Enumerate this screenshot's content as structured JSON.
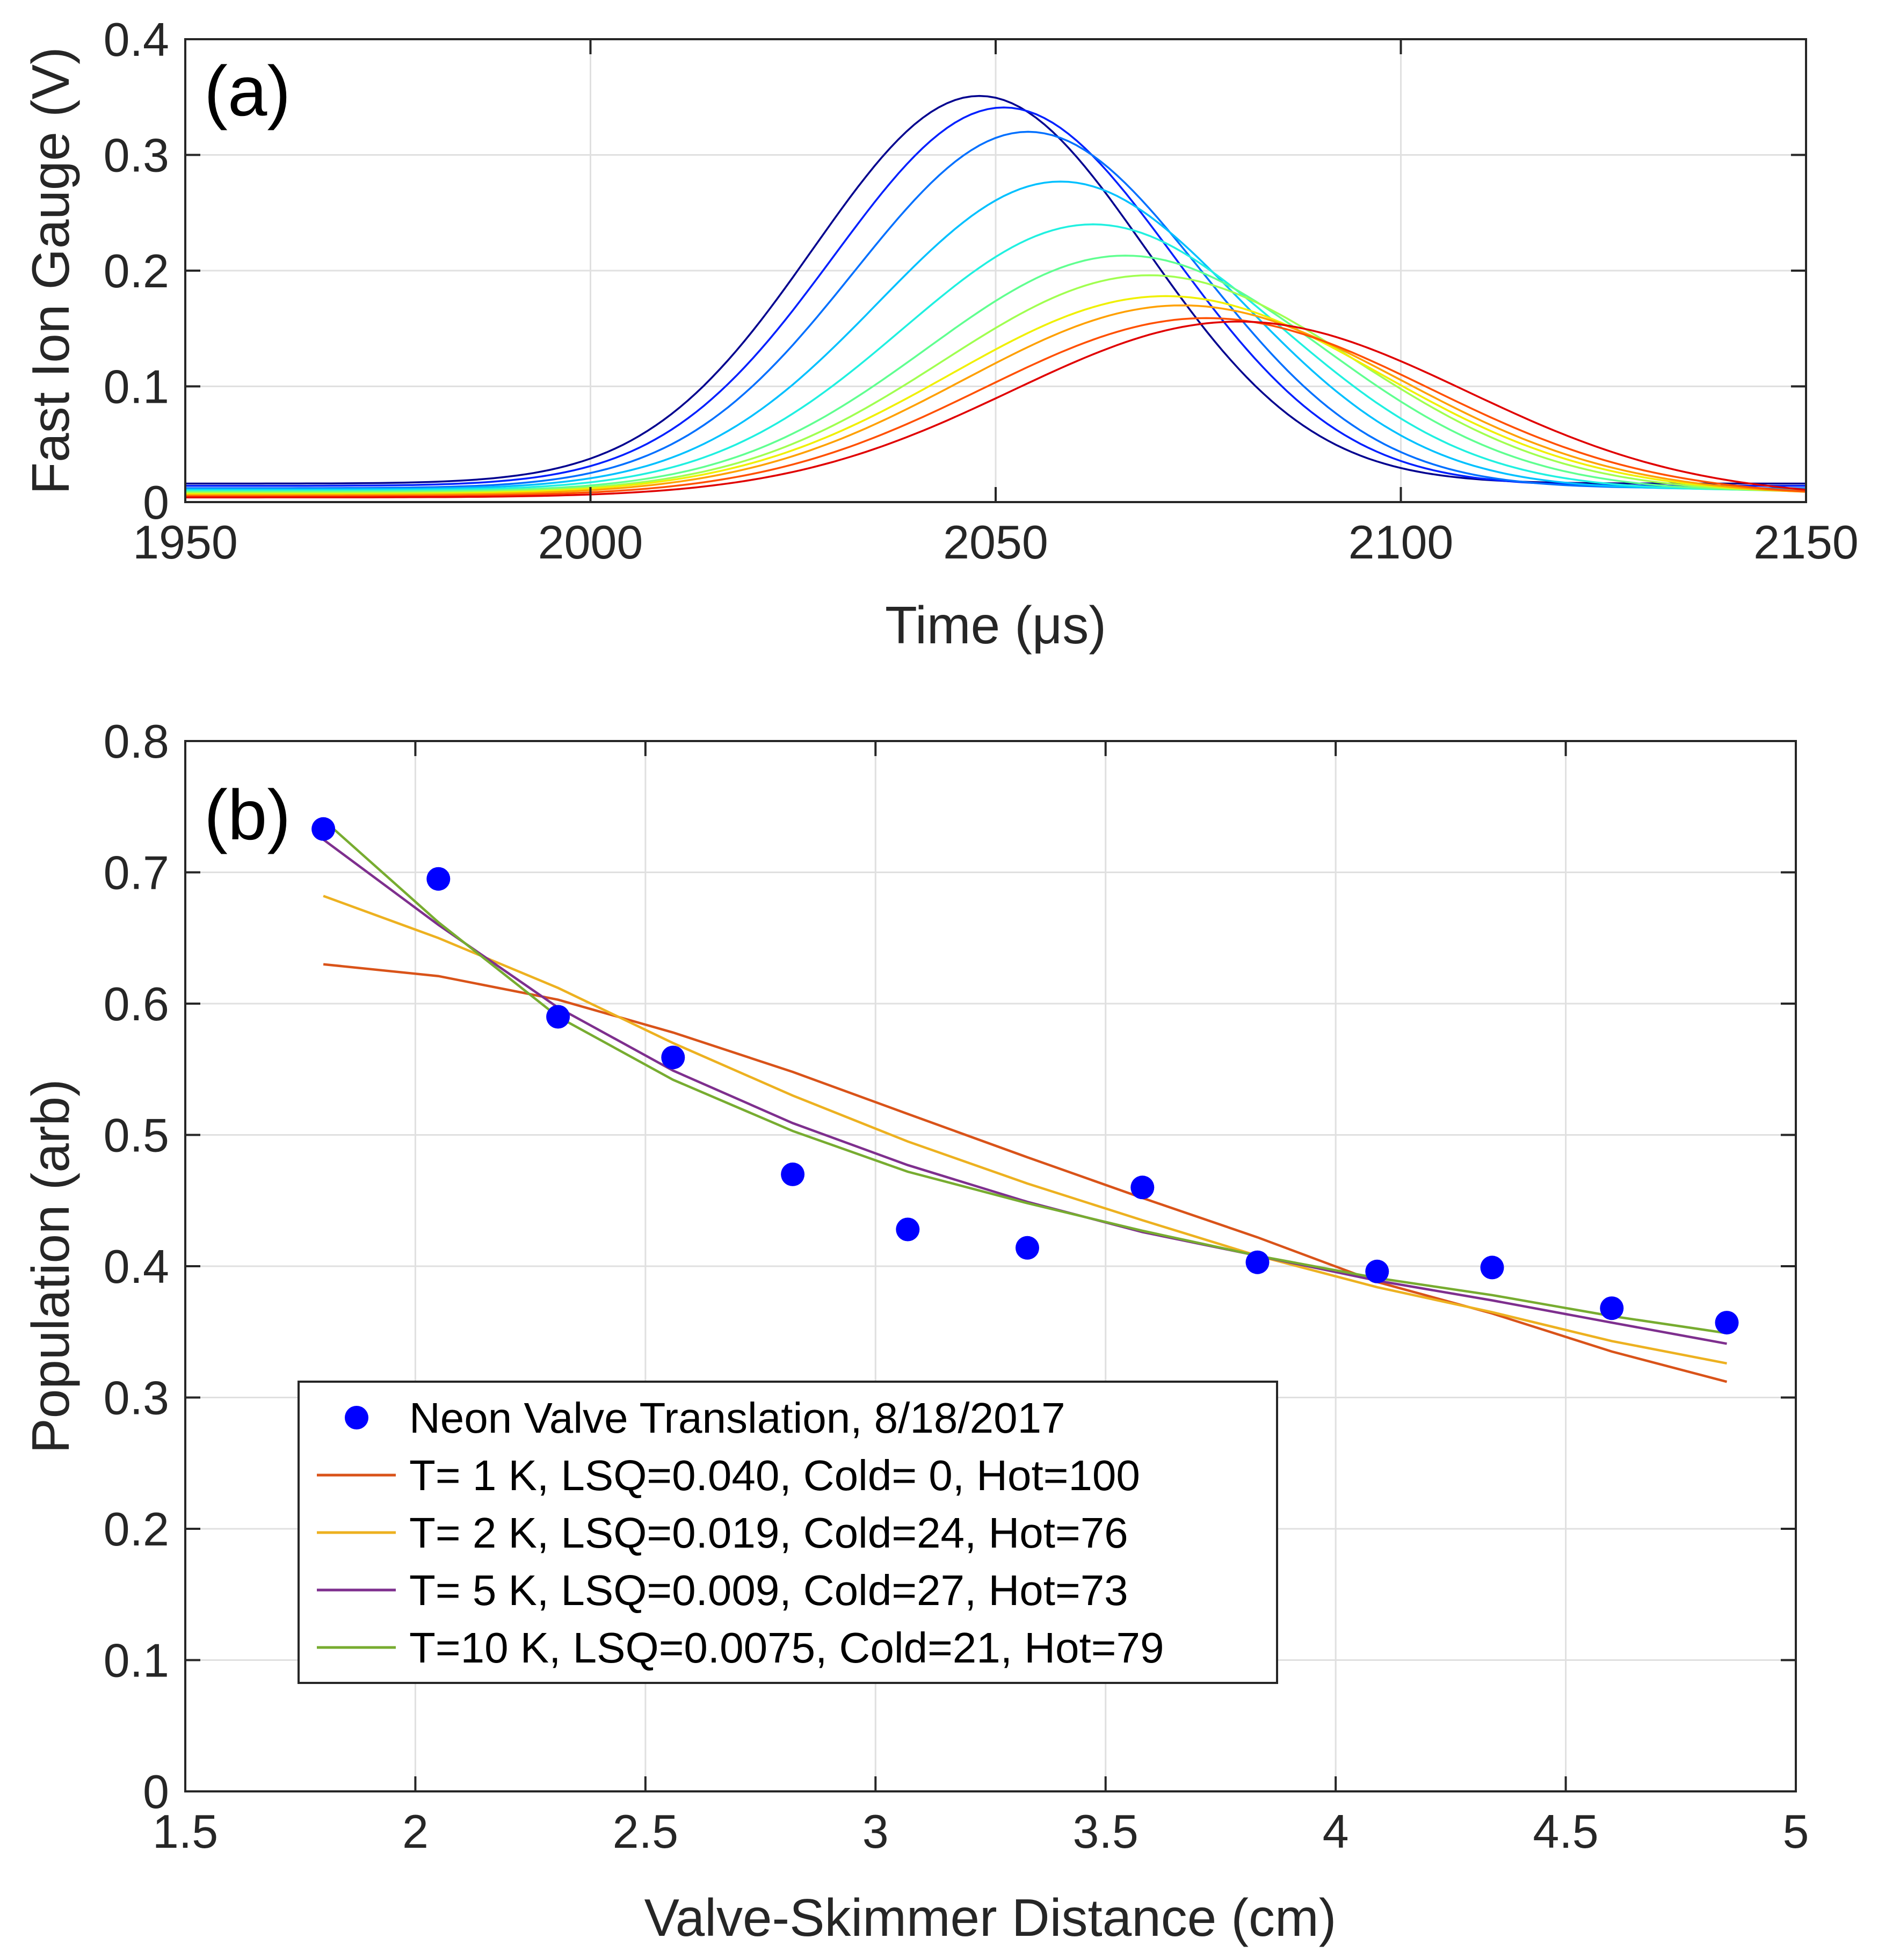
{
  "chart_data": [
    {
      "panel_label": "(a)",
      "type": "line",
      "xlabel": "Time (μs)",
      "ylabel": "Fast Ion Gauge (V)",
      "xlim": [
        1950,
        2150
      ],
      "ylim": [
        0,
        0.4
      ],
      "xticks": [
        1950,
        2000,
        2050,
        2100,
        2150
      ],
      "xtick_labels": [
        "1950",
        "2000",
        "2050",
        "2100",
        "2150"
      ],
      "yticks": [
        0,
        0.1,
        0.2,
        0.3,
        0.4
      ],
      "ytick_labels": [
        "0",
        "0.1",
        "0.2",
        "0.3",
        "0.4"
      ],
      "grid": true,
      "series": [
        {
          "color": "#00008f",
          "baseline": 0.016,
          "peak": 0.351,
          "center": 2048,
          "sigma": 20.5
        },
        {
          "color": "#0020ff",
          "baseline": 0.014,
          "peak": 0.341,
          "center": 2051,
          "sigma": 21.0
        },
        {
          "color": "#0070ff",
          "baseline": 0.012,
          "peak": 0.32,
          "center": 2054,
          "sigma": 21.5
        },
        {
          "color": "#00c0ff",
          "baseline": 0.011,
          "peak": 0.277,
          "center": 2058,
          "sigma": 22.5
        },
        {
          "color": "#20f0e0",
          "baseline": 0.01,
          "peak": 0.24,
          "center": 2062,
          "sigma": 23.5
        },
        {
          "color": "#60ff90",
          "baseline": 0.009,
          "peak": 0.213,
          "center": 2066,
          "sigma": 24.5
        },
        {
          "color": "#a0ff50",
          "baseline": 0.008,
          "peak": 0.196,
          "center": 2069,
          "sigma": 25.5
        },
        {
          "color": "#f0f000",
          "baseline": 0.007,
          "peak": 0.178,
          "center": 2071,
          "sigma": 26.5
        },
        {
          "color": "#ffa000",
          "baseline": 0.006,
          "peak": 0.17,
          "center": 2073,
          "sigma": 27.0
        },
        {
          "color": "#ff5000",
          "baseline": 0.005,
          "peak": 0.159,
          "center": 2076,
          "sigma": 27.5
        },
        {
          "color": "#e00000",
          "baseline": 0.004,
          "peak": 0.156,
          "center": 2080,
          "sigma": 28.0
        }
      ]
    },
    {
      "panel_label": "(b)",
      "type": "line",
      "xlabel": "Valve-Skimmer Distance (cm)",
      "ylabel": "Population (arb)",
      "xlim": [
        1.5,
        5
      ],
      "ylim": [
        0,
        0.8
      ],
      "xticks": [
        1.5,
        2,
        2.5,
        3,
        3.5,
        4,
        4.5,
        5
      ],
      "xtick_labels": [
        "1.5",
        "2",
        "2.5",
        "3",
        "3.5",
        "4",
        "4.5",
        "5"
      ],
      "yticks": [
        0,
        0.1,
        0.2,
        0.3,
        0.4,
        0.5,
        0.6,
        0.7,
        0.8
      ],
      "ytick_labels": [
        "0",
        "0.1",
        "0.2",
        "0.3",
        "0.4",
        "0.5",
        "0.6",
        "0.7",
        "0.8"
      ],
      "grid": true,
      "legend_position": "lower-left",
      "x": [
        1.8,
        2.05,
        2.31,
        2.56,
        2.82,
        3.07,
        3.33,
        3.58,
        3.83,
        4.09,
        4.34,
        4.6,
        4.85
      ],
      "scatter": {
        "name": "Neon Valve Translation, 8/18/2017",
        "color": "#0000ff",
        "values": [
          0.733,
          0.695,
          0.59,
          0.559,
          0.47,
          0.428,
          0.414,
          0.46,
          0.403,
          0.396,
          0.399,
          0.368,
          0.357
        ]
      },
      "series": [
        {
          "name": "T= 1 K, LSQ=0.040, Cold= 0, Hot=100",
          "color": "#d95319",
          "values": [
            0.63,
            0.621,
            0.603,
            0.578,
            0.548,
            0.516,
            0.483,
            0.452,
            0.422,
            0.388,
            0.364,
            0.335,
            0.312
          ]
        },
        {
          "name": "T= 2 K, LSQ=0.019, Cold=24, Hot=76",
          "color": "#edb120",
          "values": [
            0.682,
            0.65,
            0.612,
            0.57,
            0.53,
            0.495,
            0.463,
            0.435,
            0.408,
            0.384,
            0.365,
            0.343,
            0.326
          ]
        },
        {
          "name": "T= 5 K, LSQ=0.009, Cold=27, Hot=73",
          "color": "#7e2f8e",
          "values": [
            0.725,
            0.66,
            0.597,
            0.549,
            0.509,
            0.477,
            0.449,
            0.426,
            0.408,
            0.389,
            0.374,
            0.357,
            0.341
          ]
        },
        {
          "name": "T=10 K, LSQ=0.0075, Cold=21, Hot=79",
          "color": "#77ac30",
          "values": [
            0.74,
            0.662,
            0.59,
            0.542,
            0.503,
            0.472,
            0.448,
            0.427,
            0.408,
            0.391,
            0.378,
            0.362,
            0.349
          ]
        }
      ]
    }
  ]
}
